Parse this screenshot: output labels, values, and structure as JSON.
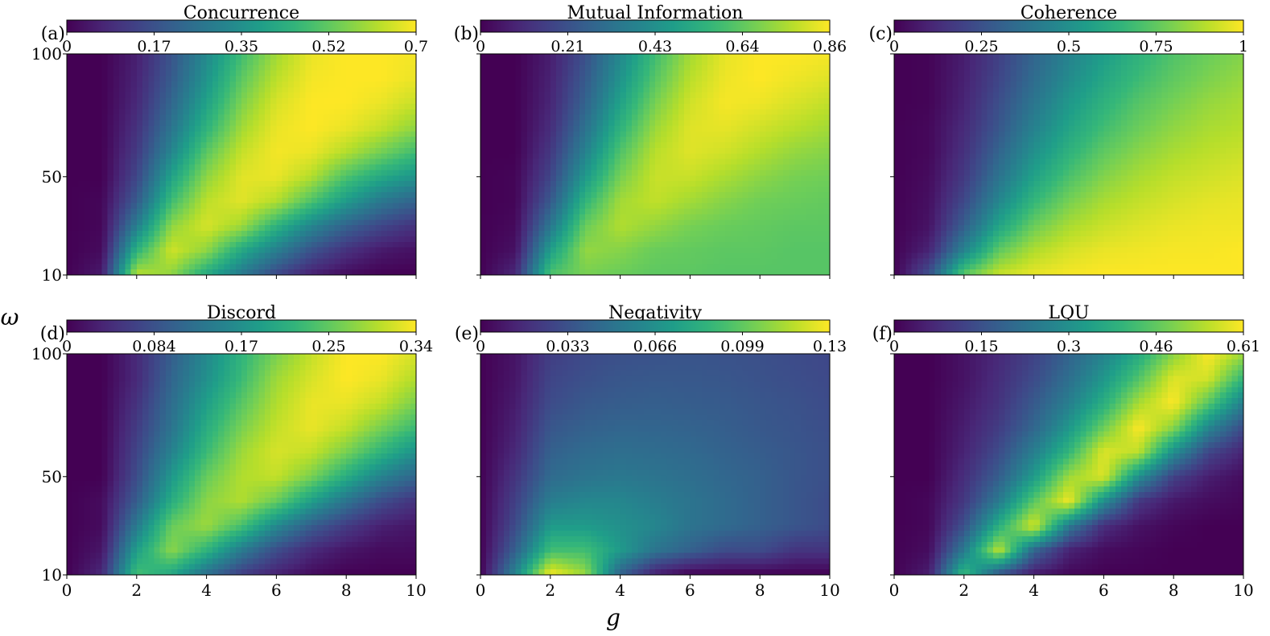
{
  "figure": {
    "xlabel": "g",
    "ylabel": "ω",
    "colormap": "viridis",
    "colormap_stops": [
      "#440154",
      "#482878",
      "#3e4989",
      "#31688e",
      "#26828e",
      "#1f9e89",
      "#35b779",
      "#6ece58",
      "#b5de2b",
      "#fde725"
    ]
  },
  "chart_data": [
    {
      "type": "heatmap",
      "panel_label": "(a)",
      "title": "Concurrence",
      "xlim": [
        0,
        10
      ],
      "ylim": [
        10,
        100
      ],
      "xticks": [
        "0",
        "2",
        "4",
        "6",
        "8",
        "10"
      ],
      "yticks": [
        "10",
        "50",
        "100"
      ],
      "colorbar": {
        "range": [
          0,
          0.7
        ],
        "ticks": [
          "0",
          "0.17",
          "0.35",
          "0.52",
          "0.7"
        ]
      },
      "x": [
        0,
        1,
        2,
        3,
        4,
        5,
        6,
        7,
        8,
        9,
        10
      ],
      "y": [
        10,
        20,
        30,
        40,
        50,
        60,
        70,
        80,
        90,
        100
      ],
      "z": [
        [
          0.0,
          0.05,
          0.63,
          0.58,
          0.42,
          0.28,
          0.15,
          0.06,
          0.02,
          0.0,
          0.0
        ],
        [
          0.0,
          0.02,
          0.45,
          0.65,
          0.58,
          0.42,
          0.3,
          0.18,
          0.1,
          0.05,
          0.03
        ],
        [
          0.0,
          0.01,
          0.3,
          0.58,
          0.66,
          0.6,
          0.45,
          0.32,
          0.22,
          0.15,
          0.1
        ],
        [
          0.0,
          0.01,
          0.2,
          0.48,
          0.63,
          0.67,
          0.62,
          0.5,
          0.38,
          0.28,
          0.22
        ],
        [
          0.0,
          0.0,
          0.15,
          0.4,
          0.58,
          0.67,
          0.68,
          0.62,
          0.5,
          0.42,
          0.36
        ],
        [
          0.0,
          0.0,
          0.12,
          0.32,
          0.52,
          0.64,
          0.69,
          0.68,
          0.62,
          0.55,
          0.48
        ],
        [
          0.0,
          0.0,
          0.1,
          0.27,
          0.45,
          0.6,
          0.68,
          0.7,
          0.68,
          0.64,
          0.58
        ],
        [
          0.0,
          0.0,
          0.08,
          0.23,
          0.4,
          0.56,
          0.66,
          0.7,
          0.7,
          0.68,
          0.64
        ],
        [
          0.0,
          0.0,
          0.07,
          0.2,
          0.36,
          0.52,
          0.63,
          0.69,
          0.7,
          0.7,
          0.68
        ],
        [
          0.0,
          0.0,
          0.06,
          0.18,
          0.33,
          0.48,
          0.6,
          0.68,
          0.7,
          0.7,
          0.69
        ]
      ]
    },
    {
      "type": "heatmap",
      "panel_label": "(b)",
      "title": "Mutual Information",
      "xlim": [
        0,
        10
      ],
      "ylim": [
        10,
        100
      ],
      "xticks": [
        "0",
        "2",
        "4",
        "6",
        "8",
        "10"
      ],
      "yticks": [
        "10",
        "50",
        "100"
      ],
      "colorbar": {
        "range": [
          0,
          0.86
        ],
        "ticks": [
          "0",
          "0.21",
          "0.43",
          "0.64",
          "0.86"
        ]
      },
      "x": [
        0,
        1,
        2,
        3,
        4,
        5,
        6,
        7,
        8,
        9,
        10
      ],
      "y": [
        10,
        20,
        30,
        40,
        50,
        60,
        70,
        80,
        90,
        100
      ],
      "z": [
        [
          0.0,
          0.1,
          0.62,
          0.68,
          0.66,
          0.64,
          0.64,
          0.63,
          0.63,
          0.63,
          0.63
        ],
        [
          0.0,
          0.04,
          0.48,
          0.72,
          0.7,
          0.66,
          0.65,
          0.64,
          0.64,
          0.63,
          0.63
        ],
        [
          0.0,
          0.02,
          0.34,
          0.66,
          0.76,
          0.72,
          0.68,
          0.66,
          0.65,
          0.64,
          0.64
        ],
        [
          0.0,
          0.01,
          0.24,
          0.56,
          0.74,
          0.78,
          0.74,
          0.7,
          0.67,
          0.66,
          0.65
        ],
        [
          0.0,
          0.01,
          0.18,
          0.46,
          0.68,
          0.79,
          0.79,
          0.75,
          0.71,
          0.68,
          0.67
        ],
        [
          0.0,
          0.0,
          0.14,
          0.38,
          0.62,
          0.77,
          0.82,
          0.8,
          0.76,
          0.72,
          0.7
        ],
        [
          0.0,
          0.0,
          0.11,
          0.32,
          0.55,
          0.73,
          0.82,
          0.83,
          0.8,
          0.77,
          0.74
        ],
        [
          0.0,
          0.0,
          0.09,
          0.27,
          0.49,
          0.68,
          0.8,
          0.85,
          0.84,
          0.81,
          0.78
        ],
        [
          0.0,
          0.0,
          0.08,
          0.24,
          0.44,
          0.63,
          0.77,
          0.84,
          0.86,
          0.84,
          0.82
        ],
        [
          0.0,
          0.0,
          0.07,
          0.21,
          0.4,
          0.59,
          0.74,
          0.83,
          0.86,
          0.86,
          0.85
        ]
      ]
    },
    {
      "type": "heatmap",
      "panel_label": "(c)",
      "title": "Coherence",
      "xlim": [
        0,
        10
      ],
      "ylim": [
        10,
        100
      ],
      "xticks": [
        "0",
        "2",
        "4",
        "6",
        "8",
        "10"
      ],
      "yticks": [
        "10",
        "50",
        "100"
      ],
      "colorbar": {
        "range": [
          0,
          1
        ],
        "ticks": [
          "0",
          "0.25",
          "0.5",
          "0.75",
          "1"
        ]
      },
      "x": [
        0,
        1,
        2,
        3,
        4,
        5,
        6,
        7,
        8,
        9,
        10
      ],
      "y": [
        10,
        20,
        30,
        40,
        50,
        60,
        70,
        80,
        90,
        100
      ],
      "z": [
        [
          0.0,
          0.25,
          0.75,
          0.92,
          0.97,
          0.99,
          1.0,
          1.0,
          1.0,
          1.0,
          1.0
        ],
        [
          0.0,
          0.1,
          0.45,
          0.75,
          0.88,
          0.94,
          0.97,
          0.98,
          0.99,
          0.99,
          1.0
        ],
        [
          0.0,
          0.05,
          0.3,
          0.58,
          0.77,
          0.87,
          0.92,
          0.95,
          0.97,
          0.98,
          0.98
        ],
        [
          0.0,
          0.04,
          0.22,
          0.46,
          0.66,
          0.79,
          0.87,
          0.91,
          0.94,
          0.96,
          0.97
        ],
        [
          0.0,
          0.03,
          0.17,
          0.38,
          0.57,
          0.71,
          0.81,
          0.87,
          0.91,
          0.93,
          0.95
        ],
        [
          0.0,
          0.02,
          0.14,
          0.32,
          0.5,
          0.64,
          0.75,
          0.82,
          0.87,
          0.9,
          0.92
        ],
        [
          0.0,
          0.02,
          0.12,
          0.27,
          0.44,
          0.58,
          0.69,
          0.77,
          0.83,
          0.87,
          0.89
        ],
        [
          0.0,
          0.01,
          0.1,
          0.24,
          0.39,
          0.53,
          0.64,
          0.73,
          0.79,
          0.84,
          0.87
        ],
        [
          0.0,
          0.01,
          0.09,
          0.21,
          0.35,
          0.48,
          0.59,
          0.68,
          0.75,
          0.8,
          0.84
        ],
        [
          0.0,
          0.01,
          0.08,
          0.19,
          0.32,
          0.44,
          0.55,
          0.64,
          0.72,
          0.77,
          0.81
        ]
      ]
    },
    {
      "type": "heatmap",
      "panel_label": "(d)",
      "title": "Discord",
      "xlim": [
        0,
        10
      ],
      "ylim": [
        10,
        100
      ],
      "xticks": [
        "0",
        "2",
        "4",
        "6",
        "8",
        "10"
      ],
      "yticks": [
        "10",
        "50",
        "100"
      ],
      "colorbar": {
        "range": [
          0,
          0.34
        ],
        "ticks": [
          "0",
          "0.084",
          "0.17",
          "0.25",
          "0.34"
        ]
      },
      "x": [
        0,
        1,
        2,
        3,
        4,
        5,
        6,
        7,
        8,
        9,
        10
      ],
      "y": [
        10,
        20,
        30,
        40,
        50,
        60,
        70,
        80,
        90,
        100
      ],
      "z": [
        [
          0.0,
          0.04,
          0.24,
          0.2,
          0.12,
          0.06,
          0.03,
          0.01,
          0.0,
          0.0,
          0.0
        ],
        [
          0.0,
          0.02,
          0.19,
          0.28,
          0.22,
          0.14,
          0.08,
          0.04,
          0.02,
          0.01,
          0.01
        ],
        [
          0.0,
          0.01,
          0.14,
          0.26,
          0.29,
          0.24,
          0.16,
          0.1,
          0.06,
          0.03,
          0.02
        ],
        [
          0.0,
          0.01,
          0.1,
          0.21,
          0.28,
          0.3,
          0.26,
          0.19,
          0.13,
          0.08,
          0.05
        ],
        [
          0.0,
          0.0,
          0.08,
          0.18,
          0.26,
          0.3,
          0.31,
          0.27,
          0.21,
          0.15,
          0.11
        ],
        [
          0.0,
          0.0,
          0.07,
          0.15,
          0.23,
          0.29,
          0.32,
          0.31,
          0.27,
          0.22,
          0.17
        ],
        [
          0.0,
          0.0,
          0.06,
          0.13,
          0.21,
          0.27,
          0.31,
          0.33,
          0.31,
          0.27,
          0.23
        ],
        [
          0.0,
          0.0,
          0.05,
          0.12,
          0.19,
          0.25,
          0.3,
          0.33,
          0.33,
          0.31,
          0.27
        ],
        [
          0.0,
          0.0,
          0.04,
          0.11,
          0.17,
          0.23,
          0.29,
          0.32,
          0.34,
          0.33,
          0.3
        ],
        [
          0.0,
          0.0,
          0.04,
          0.1,
          0.16,
          0.22,
          0.27,
          0.31,
          0.34,
          0.34,
          0.32
        ]
      ]
    },
    {
      "type": "heatmap",
      "panel_label": "(e)",
      "title": "Negativity",
      "xlim": [
        0,
        10
      ],
      "ylim": [
        10,
        100
      ],
      "xticks": [
        "0",
        "2",
        "4",
        "6",
        "8",
        "10"
      ],
      "yticks": [
        "10",
        "50",
        "100"
      ],
      "colorbar": {
        "range": [
          0,
          0.13
        ],
        "ticks": [
          "0",
          "0.033",
          "0.066",
          "0.099",
          "0.13"
        ]
      },
      "x": [
        0,
        1,
        2,
        3,
        4,
        5,
        6,
        7,
        8,
        9,
        10
      ],
      "y": [
        10,
        20,
        30,
        40,
        50,
        60,
        70,
        80,
        90,
        100
      ],
      "z": [
        [
          0.0,
          0.06,
          0.13,
          0.11,
          0.04,
          0.01,
          0.0,
          0.0,
          0.0,
          0.0,
          0.0
        ],
        [
          0.0,
          0.04,
          0.09,
          0.09,
          0.07,
          0.05,
          0.04,
          0.03,
          0.03,
          0.02,
          0.02
        ],
        [
          0.0,
          0.03,
          0.07,
          0.07,
          0.065,
          0.06,
          0.05,
          0.045,
          0.04,
          0.035,
          0.03
        ],
        [
          0.0,
          0.025,
          0.055,
          0.06,
          0.06,
          0.055,
          0.05,
          0.045,
          0.04,
          0.035,
          0.03
        ],
        [
          0.0,
          0.02,
          0.045,
          0.05,
          0.052,
          0.05,
          0.047,
          0.043,
          0.04,
          0.035,
          0.032
        ],
        [
          0.0,
          0.015,
          0.04,
          0.045,
          0.047,
          0.046,
          0.044,
          0.041,
          0.038,
          0.035,
          0.032
        ],
        [
          0.0,
          0.012,
          0.035,
          0.04,
          0.042,
          0.042,
          0.041,
          0.039,
          0.036,
          0.034,
          0.031
        ],
        [
          0.0,
          0.01,
          0.03,
          0.036,
          0.038,
          0.039,
          0.038,
          0.037,
          0.035,
          0.033,
          0.03
        ],
        [
          0.0,
          0.008,
          0.027,
          0.032,
          0.035,
          0.036,
          0.036,
          0.035,
          0.033,
          0.031,
          0.029
        ],
        [
          0.0,
          0.007,
          0.024,
          0.029,
          0.032,
          0.033,
          0.034,
          0.033,
          0.032,
          0.03,
          0.028
        ]
      ]
    },
    {
      "type": "heatmap",
      "panel_label": "(f)",
      "title": "LQU",
      "xlim": [
        0,
        10
      ],
      "ylim": [
        10,
        100
      ],
      "xticks": [
        "0",
        "2",
        "4",
        "6",
        "8",
        "10"
      ],
      "yticks": [
        "10",
        "50",
        "100"
      ],
      "colorbar": {
        "range": [
          0,
          0.61
        ],
        "ticks": [
          "0",
          "0.15",
          "0.3",
          "0.46",
          "0.61"
        ]
      },
      "x": [
        0,
        1,
        2,
        3,
        4,
        5,
        6,
        7,
        8,
        9,
        10
      ],
      "y": [
        10,
        20,
        30,
        40,
        50,
        60,
        70,
        80,
        90,
        100
      ],
      "z": [
        [
          0.0,
          0.05,
          0.42,
          0.15,
          0.04,
          0.01,
          0.0,
          0.0,
          0.0,
          0.0,
          0.0
        ],
        [
          0.0,
          0.02,
          0.25,
          0.55,
          0.2,
          0.06,
          0.02,
          0.01,
          0.0,
          0.0,
          0.0
        ],
        [
          0.0,
          0.01,
          0.15,
          0.38,
          0.58,
          0.25,
          0.08,
          0.03,
          0.01,
          0.0,
          0.0
        ],
        [
          0.0,
          0.01,
          0.1,
          0.25,
          0.45,
          0.6,
          0.3,
          0.1,
          0.04,
          0.02,
          0.01
        ],
        [
          0.0,
          0.0,
          0.08,
          0.18,
          0.33,
          0.52,
          0.58,
          0.3,
          0.12,
          0.05,
          0.02
        ],
        [
          0.0,
          0.0,
          0.06,
          0.14,
          0.26,
          0.4,
          0.58,
          0.55,
          0.3,
          0.13,
          0.06
        ],
        [
          0.0,
          0.0,
          0.05,
          0.11,
          0.2,
          0.32,
          0.47,
          0.61,
          0.5,
          0.28,
          0.14
        ],
        [
          0.0,
          0.0,
          0.04,
          0.09,
          0.17,
          0.26,
          0.38,
          0.53,
          0.61,
          0.45,
          0.26
        ],
        [
          0.0,
          0.0,
          0.03,
          0.08,
          0.14,
          0.22,
          0.32,
          0.44,
          0.58,
          0.57,
          0.4
        ],
        [
          0.0,
          0.0,
          0.03,
          0.07,
          0.12,
          0.19,
          0.27,
          0.37,
          0.5,
          0.61,
          0.52
        ]
      ]
    }
  ]
}
